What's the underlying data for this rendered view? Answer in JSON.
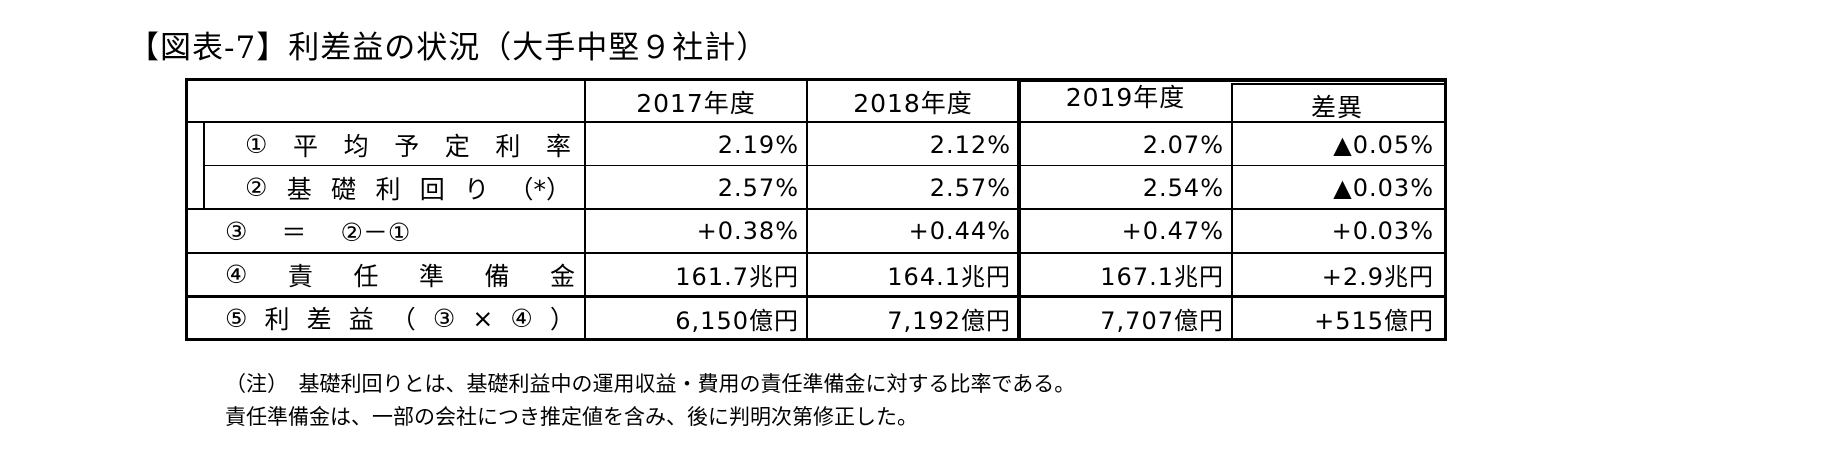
{
  "title": "【図表-7】利差益の状況（大手中堅９社計）",
  "headers": [
    "2017年度",
    "2018年度",
    "2019年度",
    "差異"
  ],
  "rows": [
    {
      "label": "①平均予定利率",
      "label_parts": [
        "①",
        "平",
        "均",
        "予",
        "定",
        "利",
        "率"
      ],
      "values": [
        "2.19%",
        "2.12%",
        "2.07%",
        "▲0.05%"
      ]
    },
    {
      "label": "②基礎利回り（*）",
      "label_parts": [
        "②",
        "基",
        "礎",
        "利",
        "回",
        "り",
        "（*）"
      ],
      "values": [
        "2.57%",
        "2.57%",
        "2.54%",
        "▲0.03%"
      ]
    },
    {
      "label": "③ ＝ ②－①",
      "label_parts": [
        "③",
        "＝",
        "②－①"
      ],
      "values": [
        "+0.38%",
        "+0.44%",
        "+0.47%",
        "+0.03%"
      ]
    },
    {
      "label": "④責任準備金",
      "label_parts": [
        "④",
        "責",
        "任",
        "準",
        "備",
        "金"
      ],
      "values": [
        "161.7兆円",
        "164.1兆円",
        "167.1兆円",
        "+2.9兆円"
      ]
    },
    {
      "label": "⑤利差益（③×④）",
      "label_parts": [
        "⑤",
        "利",
        "差",
        "益",
        "（",
        "③",
        "×",
        "④",
        "）"
      ],
      "values": [
        "6,150億円",
        "7,192億円",
        "7,707億円",
        "+515億円"
      ]
    }
  ],
  "notes": [
    "（注）　基礎利回りとは、基礎利益中の運用収益・費用の責任準備金に対する比率である。",
    "責任準備金は、一部の会社につき推定値を含み、後に判明次第修正した。"
  ]
}
